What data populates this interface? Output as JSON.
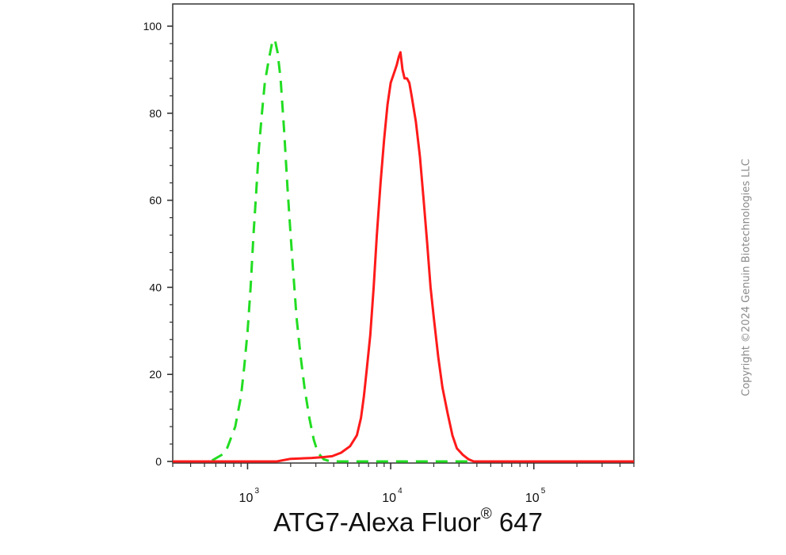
{
  "chart_data": {
    "type": "line",
    "title": "",
    "xlabel": {
      "main": "ATG7-Alexa Fluor",
      "mark": "®",
      "suffix": " 647"
    },
    "ylabel": "",
    "xscale": "log",
    "xlim": [
      300,
      500000
    ],
    "ylim": [
      0,
      100
    ],
    "yticks": [
      0,
      20,
      40,
      60,
      80,
      100
    ],
    "yticks_labels": [
      "0",
      "20",
      "40",
      "60",
      "80",
      "100"
    ],
    "xticks": [
      {
        "value": 1000,
        "base": "10",
        "exp": "3"
      },
      {
        "value": 10000,
        "base": "10",
        "exp": "4"
      },
      {
        "value": 100000,
        "base": "10",
        "exp": "5"
      }
    ],
    "grid": false,
    "legend": "none",
    "series": [
      {
        "color": "#22dd22",
        "style": "dashed",
        "points": [
          [
            300,
            0
          ],
          [
            550,
            0
          ],
          [
            700,
            2
          ],
          [
            820,
            8
          ],
          [
            900,
            15
          ],
          [
            950,
            22
          ],
          [
            1000,
            30
          ],
          [
            1050,
            40
          ],
          [
            1100,
            52
          ],
          [
            1150,
            62
          ],
          [
            1200,
            72
          ],
          [
            1260,
            80
          ],
          [
            1320,
            87
          ],
          [
            1400,
            92
          ],
          [
            1480,
            96
          ],
          [
            1550,
            97
          ],
          [
            1620,
            94
          ],
          [
            1700,
            88
          ],
          [
            1800,
            76
          ],
          [
            1900,
            63
          ],
          [
            2000,
            52
          ],
          [
            2100,
            42
          ],
          [
            2200,
            33
          ],
          [
            2350,
            24
          ],
          [
            2500,
            17
          ],
          [
            2700,
            10
          ],
          [
            2900,
            5
          ],
          [
            3100,
            2
          ],
          [
            3400,
            0.5
          ],
          [
            3800,
            0
          ],
          [
            500000,
            0
          ]
        ]
      },
      {
        "color": "#ff1a1a",
        "style": "solid",
        "points": [
          [
            300,
            0
          ],
          [
            1600,
            0
          ],
          [
            2000,
            0.6
          ],
          [
            2800,
            0.8
          ],
          [
            3400,
            1
          ],
          [
            3900,
            1.2
          ],
          [
            4500,
            2
          ],
          [
            5200,
            3.5
          ],
          [
            5800,
            6
          ],
          [
            6200,
            10
          ],
          [
            6500,
            15
          ],
          [
            6800,
            21
          ],
          [
            7200,
            29
          ],
          [
            7600,
            40
          ],
          [
            8000,
            52
          ],
          [
            8500,
            64
          ],
          [
            9000,
            74
          ],
          [
            9500,
            82
          ],
          [
            10000,
            87
          ],
          [
            10500,
            89
          ],
          [
            11000,
            91
          ],
          [
            11400,
            93
          ],
          [
            11700,
            94
          ],
          [
            12100,
            90
          ],
          [
            12500,
            88
          ],
          [
            13000,
            88
          ],
          [
            13500,
            87
          ],
          [
            14000,
            84
          ],
          [
            15000,
            78
          ],
          [
            16000,
            70
          ],
          [
            17000,
            60
          ],
          [
            18000,
            50
          ],
          [
            19000,
            40
          ],
          [
            20000,
            33
          ],
          [
            21500,
            24
          ],
          [
            23000,
            17
          ],
          [
            25000,
            11
          ],
          [
            27000,
            6
          ],
          [
            29000,
            3
          ],
          [
            32000,
            1.5
          ],
          [
            35000,
            0.5
          ],
          [
            38000,
            0
          ],
          [
            500000,
            0
          ]
        ]
      }
    ]
  },
  "watermark": "Copyright ©2024 Genuin Biotechnologies LLC"
}
